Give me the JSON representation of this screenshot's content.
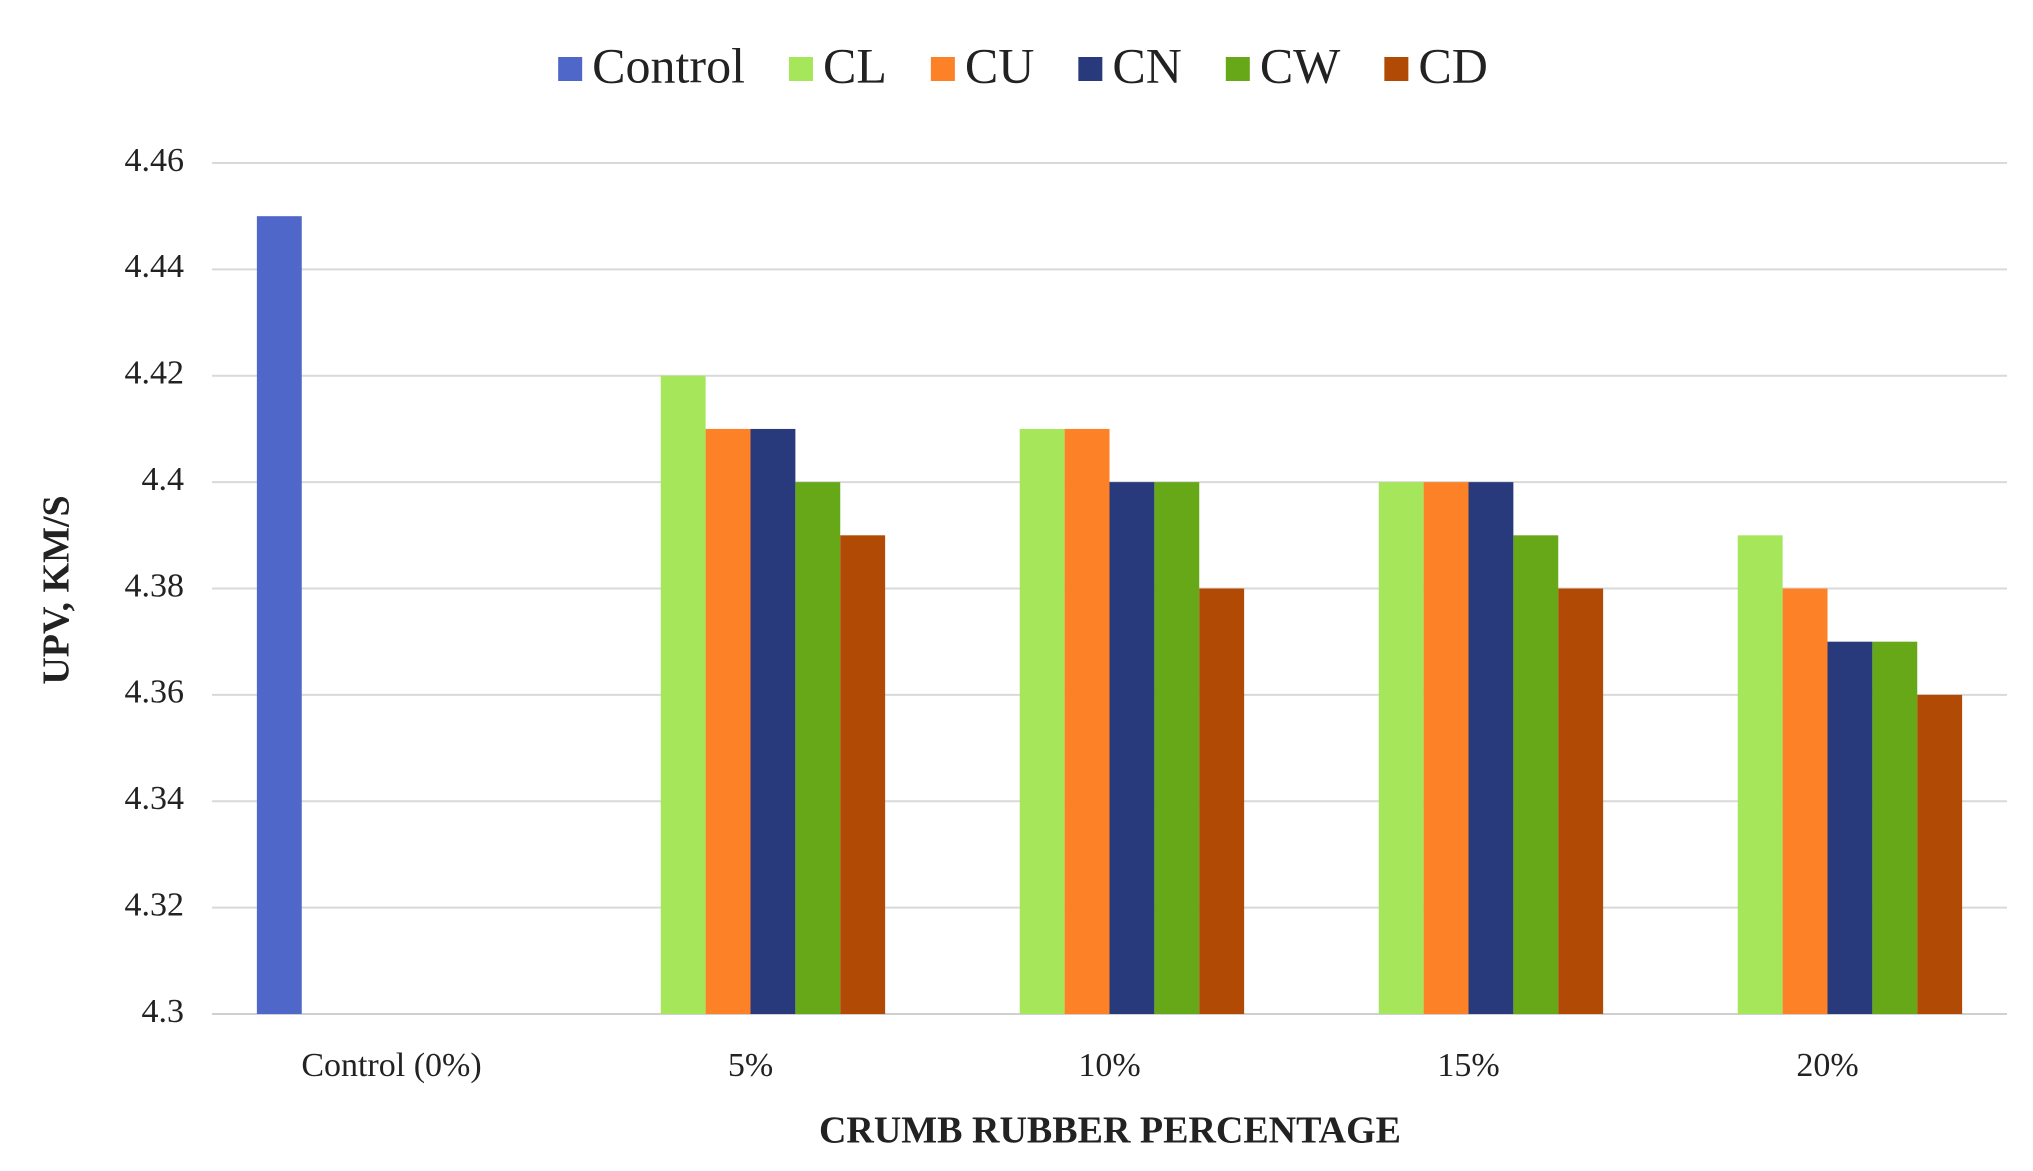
{
  "chart_data": {
    "type": "bar",
    "x_label": "CRUMB RUBBER PERCENTAGE",
    "y_label": "UPV, KM/S",
    "categories": [
      "Control (0%)",
      "5%",
      "10%",
      "15%",
      "20%"
    ],
    "series": [
      {
        "name": "Control",
        "color": "#4f67c9",
        "values": [
          4.45,
          null,
          null,
          null,
          null
        ]
      },
      {
        "name": "CL",
        "color": "#a5e65a",
        "values": [
          null,
          4.42,
          4.41,
          4.4,
          4.39
        ]
      },
      {
        "name": "CU",
        "color": "#fd8127",
        "values": [
          null,
          4.41,
          4.41,
          4.4,
          4.38
        ]
      },
      {
        "name": "CN",
        "color": "#283a7c",
        "values": [
          null,
          4.41,
          4.4,
          4.4,
          4.37
        ]
      },
      {
        "name": "CW",
        "color": "#66a818",
        "values": [
          null,
          4.4,
          4.4,
          4.39,
          4.37
        ]
      },
      {
        "name": "CD",
        "color": "#b04a04",
        "values": [
          null,
          4.39,
          4.38,
          4.38,
          4.36
        ]
      }
    ],
    "ylim": [
      4.3,
      4.46
    ],
    "yticks": [
      4.3,
      4.32,
      4.34,
      4.36,
      4.38,
      4.4,
      4.42,
      4.44,
      4.46
    ],
    "grid": true,
    "legend": "top"
  }
}
